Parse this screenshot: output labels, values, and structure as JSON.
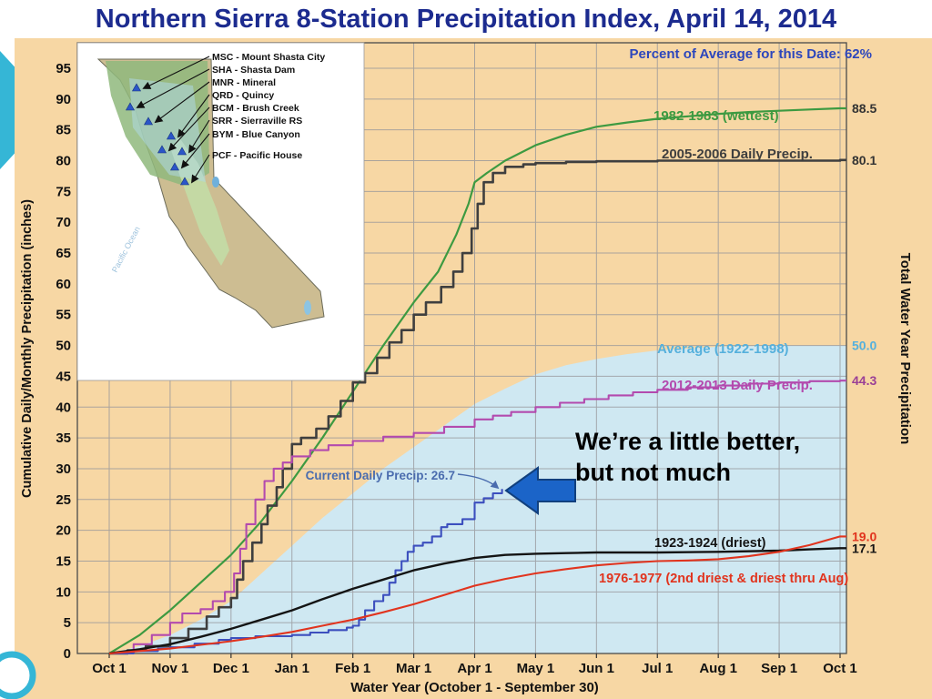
{
  "slide": {
    "title": "Northern Sierra 8-Station Precipitation Index, April 14, 2014",
    "title_color": "#1c2b8f",
    "accent_teal": "#35b6d6",
    "background": "#f7d7a4"
  },
  "chart_data": {
    "type": "line",
    "title": "Northern Sierra 8-Station Precipitation Index, April 14, 2014",
    "percent_note": "Percent of Average for this Date: 62%",
    "percent_value": 62,
    "xlabel": "Water Year (October 1 - September 30)",
    "ylabel_left": "Cumulative Daily/Monthly Precipitation (inches)",
    "ylabel_right": "Total Water Year Precipitation",
    "x_ticks": [
      "Oct 1",
      "Nov 1",
      "Dec 1",
      "Jan 1",
      "Feb 1",
      "Mar 1",
      "Apr 1",
      "May 1",
      "Jun 1",
      "Jul 1",
      "Aug 1",
      "Sep 1",
      "Oct 1"
    ],
    "y_ticks": [
      0,
      5,
      10,
      15,
      20,
      25,
      30,
      35,
      40,
      45,
      50,
      55,
      60,
      65,
      70,
      75,
      80,
      85,
      90,
      95
    ],
    "ylim": [
      0,
      99
    ],
    "x_unit": "months since Oct 1 (0 - 12)",
    "grid": true,
    "average_area": {
      "name": "Average (1922-1998)",
      "label": "Average (1922-1998)",
      "end_label": "50.0",
      "end_value": 50.0,
      "fill": "#cfe8f2",
      "label_color": "#55b0dc",
      "extend": true,
      "points": [
        [
          0,
          0
        ],
        [
          0.5,
          1.2
        ],
        [
          1,
          3
        ],
        [
          1.5,
          5.5
        ],
        [
          2,
          8.5
        ],
        [
          2.5,
          13
        ],
        [
          3,
          17.5
        ],
        [
          3.5,
          22
        ],
        [
          4,
          26
        ],
        [
          4.5,
          30
        ],
        [
          5,
          33.5
        ],
        [
          5.5,
          37
        ],
        [
          6,
          40.5
        ],
        [
          6.5,
          43
        ],
        [
          7,
          45.3
        ],
        [
          7.5,
          46.8
        ],
        [
          8,
          47.8
        ],
        [
          8.5,
          48.6
        ],
        [
          9,
          49.2
        ],
        [
          9.5,
          49.5
        ],
        [
          10,
          49.8
        ],
        [
          10.5,
          49.9
        ],
        [
          11,
          50
        ],
        [
          12,
          50
        ]
      ]
    },
    "series": [
      {
        "id": "1982-1983",
        "label": "1982-1983 (wettest)",
        "color": "#3d9a41",
        "end_label": "88.5",
        "end_value": 88.5,
        "end_color": "#333333",
        "steps": false,
        "extend": true,
        "points": [
          [
            0,
            0
          ],
          [
            0.5,
            3
          ],
          [
            1,
            7
          ],
          [
            1.5,
            11.5
          ],
          [
            2,
            16
          ],
          [
            2.5,
            21.5
          ],
          [
            3,
            28
          ],
          [
            3.5,
            35
          ],
          [
            4,
            42.5
          ],
          [
            4.5,
            50
          ],
          [
            5,
            57
          ],
          [
            5.4,
            62
          ],
          [
            5.7,
            68
          ],
          [
            5.9,
            73
          ],
          [
            6,
            76.5
          ],
          [
            6.2,
            78
          ],
          [
            6.5,
            80
          ],
          [
            7,
            82.5
          ],
          [
            7.5,
            84.2
          ],
          [
            8,
            85.5
          ],
          [
            8.5,
            86.2
          ],
          [
            9,
            86.8
          ],
          [
            9.5,
            87.2
          ],
          [
            10,
            87.6
          ],
          [
            10.5,
            87.9
          ],
          [
            11,
            88.1
          ],
          [
            11.5,
            88.3
          ],
          [
            12,
            88.5
          ]
        ]
      },
      {
        "id": "2005-2006",
        "label": "2005-2006 Daily Precip.",
        "color": "#3f3f3f",
        "end_label": "80.1",
        "end_value": 80.1,
        "end_color": "#333333",
        "steps": true,
        "extend": true,
        "points": [
          [
            0,
            0
          ],
          [
            0.3,
            0.5
          ],
          [
            0.6,
            1.2
          ],
          [
            1,
            2.5
          ],
          [
            1.3,
            4
          ],
          [
            1.6,
            6
          ],
          [
            1.8,
            7.5
          ],
          [
            2,
            9
          ],
          [
            2.1,
            12
          ],
          [
            2.2,
            15
          ],
          [
            2.35,
            18
          ],
          [
            2.5,
            21
          ],
          [
            2.6,
            24
          ],
          [
            2.75,
            27
          ],
          [
            2.85,
            30
          ],
          [
            3,
            34
          ],
          [
            3.15,
            35
          ],
          [
            3.4,
            36.5
          ],
          [
            3.6,
            38.5
          ],
          [
            3.8,
            41
          ],
          [
            4,
            44
          ],
          [
            4.2,
            45.5
          ],
          [
            4.4,
            48
          ],
          [
            4.6,
            50.5
          ],
          [
            4.8,
            52.5
          ],
          [
            5,
            55
          ],
          [
            5.2,
            57
          ],
          [
            5.45,
            59.5
          ],
          [
            5.65,
            62
          ],
          [
            5.8,
            65
          ],
          [
            5.95,
            69
          ],
          [
            6.05,
            73
          ],
          [
            6.15,
            76.5
          ],
          [
            6.3,
            78
          ],
          [
            6.5,
            79
          ],
          [
            6.8,
            79.4
          ],
          [
            7,
            79.6
          ],
          [
            7.5,
            79.8
          ],
          [
            8,
            79.9
          ],
          [
            9,
            80
          ],
          [
            10,
            80
          ],
          [
            11,
            80
          ],
          [
            12,
            80.1
          ]
        ]
      },
      {
        "id": "2012-2013",
        "label": "2012-2013 Daily Precip.",
        "color": "#b34aae",
        "end_label": "44.3",
        "end_value": 44.3,
        "end_color": "#9a3f96",
        "steps": true,
        "extend": true,
        "points": [
          [
            0,
            0
          ],
          [
            0.4,
            1.5
          ],
          [
            0.7,
            3
          ],
          [
            1,
            5
          ],
          [
            1.2,
            6.5
          ],
          [
            1.5,
            7.2
          ],
          [
            1.7,
            8.5
          ],
          [
            1.9,
            10
          ],
          [
            2.05,
            13
          ],
          [
            2.15,
            17
          ],
          [
            2.25,
            21
          ],
          [
            2.4,
            25
          ],
          [
            2.55,
            28
          ],
          [
            2.7,
            30
          ],
          [
            2.85,
            31
          ],
          [
            3,
            32
          ],
          [
            3.3,
            33
          ],
          [
            3.6,
            33.8
          ],
          [
            4,
            34.5
          ],
          [
            4.5,
            35.2
          ],
          [
            5,
            35.8
          ],
          [
            5.5,
            36.8
          ],
          [
            6,
            38
          ],
          [
            6.3,
            38.6
          ],
          [
            6.6,
            39.2
          ],
          [
            7,
            40
          ],
          [
            7.4,
            40.7
          ],
          [
            7.8,
            41.3
          ],
          [
            8.2,
            41.9
          ],
          [
            8.6,
            42.4
          ],
          [
            9,
            42.8
          ],
          [
            9.5,
            43.2
          ],
          [
            10,
            43.5
          ],
          [
            10.5,
            43.8
          ],
          [
            11,
            44
          ],
          [
            11.5,
            44.2
          ],
          [
            12,
            44.3
          ]
        ]
      },
      {
        "id": "current",
        "label": "Current Daily Precip: 26.7",
        "color": "#3c4fbe",
        "label_color": "#4a6cae",
        "end_label": null,
        "end_value": 26.7,
        "steps": true,
        "extend": false,
        "points": [
          [
            0,
            0
          ],
          [
            0.4,
            0.4
          ],
          [
            0.8,
            0.8
          ],
          [
            1,
            1
          ],
          [
            1.4,
            1.6
          ],
          [
            1.8,
            2.2
          ],
          [
            2,
            2.5
          ],
          [
            2.4,
            2.8
          ],
          [
            3,
            3
          ],
          [
            3.3,
            3.4
          ],
          [
            3.6,
            3.8
          ],
          [
            3.9,
            4.2
          ],
          [
            4,
            4.5
          ],
          [
            4.1,
            5.5
          ],
          [
            4.2,
            7
          ],
          [
            4.35,
            8.5
          ],
          [
            4.5,
            9.5
          ],
          [
            4.6,
            11.5
          ],
          [
            4.7,
            13.5
          ],
          [
            4.8,
            15
          ],
          [
            4.9,
            16.5
          ],
          [
            5,
            17.5
          ],
          [
            5.15,
            18
          ],
          [
            5.3,
            19
          ],
          [
            5.45,
            20.5
          ],
          [
            5.55,
            21
          ],
          [
            5.8,
            21.8
          ],
          [
            6,
            24.5
          ],
          [
            6.15,
            25.2
          ],
          [
            6.3,
            26
          ],
          [
            6.45,
            26.7
          ]
        ]
      },
      {
        "id": "1923-1924",
        "label": "1923-1924 (driest)",
        "color": "#141414",
        "end_label": "17.1",
        "end_value": 17.1,
        "end_color": "#141414",
        "steps": false,
        "extend": true,
        "points": [
          [
            0,
            0
          ],
          [
            0.5,
            0.7
          ],
          [
            1,
            1.5
          ],
          [
            1.5,
            2.7
          ],
          [
            2,
            4
          ],
          [
            2.5,
            5.5
          ],
          [
            3,
            7
          ],
          [
            3.5,
            8.8
          ],
          [
            4,
            10.5
          ],
          [
            4.5,
            12
          ],
          [
            5,
            13.5
          ],
          [
            5.5,
            14.6
          ],
          [
            6,
            15.5
          ],
          [
            6.5,
            16
          ],
          [
            7,
            16.2
          ],
          [
            7.5,
            16.3
          ],
          [
            8,
            16.4
          ],
          [
            9,
            16.4
          ],
          [
            10,
            16.5
          ],
          [
            11,
            16.7
          ],
          [
            11.5,
            16.9
          ],
          [
            12,
            17.1
          ]
        ]
      },
      {
        "id": "1976-1977",
        "label": "1976-1977 (2nd driest & driest thru Aug)",
        "color": "#e1341e",
        "end_label": "19.0",
        "end_value": 19.0,
        "end_color": "#e1341e",
        "steps": false,
        "extend": true,
        "points": [
          [
            0,
            0
          ],
          [
            0.5,
            0.4
          ],
          [
            1,
            0.8
          ],
          [
            1.5,
            1.4
          ],
          [
            2,
            2
          ],
          [
            2.5,
            2.7
          ],
          [
            3,
            3.5
          ],
          [
            3.5,
            4.5
          ],
          [
            4,
            5.5
          ],
          [
            4.5,
            6.7
          ],
          [
            5,
            8
          ],
          [
            5.5,
            9.5
          ],
          [
            6,
            11
          ],
          [
            6.5,
            12.1
          ],
          [
            7,
            13
          ],
          [
            7.5,
            13.7
          ],
          [
            8,
            14.3
          ],
          [
            8.5,
            14.7
          ],
          [
            9,
            15
          ],
          [
            9.5,
            15.1
          ],
          [
            10,
            15.3
          ],
          [
            10.5,
            15.8
          ],
          [
            11,
            16.5
          ],
          [
            11.5,
            17.6
          ],
          [
            12,
            19
          ]
        ]
      }
    ],
    "annotation": {
      "line1": "We’re a little better,",
      "line2": "but not much"
    }
  },
  "map": {
    "ocean_label": "Pacific Ocean",
    "stations": [
      {
        "code": "MSC",
        "label": "MSC - Mount Shasta City"
      },
      {
        "code": "SHA",
        "label": "SHA - Shasta Dam"
      },
      {
        "code": "MNR",
        "label": "MNR - Mineral"
      },
      {
        "code": "QRD",
        "label": "QRD - Quincy"
      },
      {
        "code": "BCM",
        "label": "BCM - Brush Creek"
      },
      {
        "code": "SRR",
        "label": "SRR - Sierraville RS"
      },
      {
        "code": "BYM",
        "label": "BYM - Blue Canyon"
      },
      {
        "code": "PCF",
        "label": "PCF - Pacific House"
      }
    ]
  }
}
